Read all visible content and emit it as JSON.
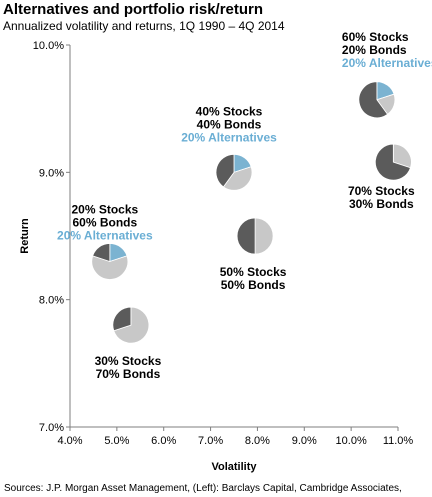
{
  "title": "Alternatives and portfolio risk/return",
  "subtitle": "Annualized volatility and returns, 1Q 1990 – 4Q 2014",
  "source": "Sources: J.P. Morgan Asset Management, (Left): Barclays Capital, Cambridge Associates,",
  "colors": {
    "stocks": "#5b5b5b",
    "bonds": "#c8c8c8",
    "alternatives": "#7bb3d1",
    "alt_text": "#6aaed4",
    "axis": "#7f7f7f"
  },
  "chart_data": {
    "type": "scatter",
    "xlabel": "Volatility",
    "ylabel": "Return",
    "xlim": [
      4.0,
      11.0
    ],
    "ylim": [
      7.0,
      10.0
    ],
    "xticks": [
      "4.0%",
      "5.0%",
      "6.0%",
      "7.0%",
      "8.0%",
      "9.0%",
      "10.0%",
      "11.0%"
    ],
    "yticks": [
      "7.0%",
      "8.0%",
      "9.0%",
      "10.0%"
    ],
    "grid": false,
    "points": [
      {
        "x": 4.85,
        "y": 8.3,
        "label": [
          "20% Stocks",
          "60% Bonds",
          "20% Alternatives"
        ],
        "allocation": {
          "stocks": 20,
          "bonds": 60,
          "alternatives": 20
        }
      },
      {
        "x": 5.3,
        "y": 7.8,
        "label": [
          "30% Stocks",
          "70% Bonds"
        ],
        "allocation": {
          "stocks": 30,
          "bonds": 70,
          "alternatives": 0
        }
      },
      {
        "x": 7.5,
        "y": 9.0,
        "label": [
          "40% Stocks",
          "40% Bonds",
          "20% Alternatives"
        ],
        "allocation": {
          "stocks": 40,
          "bonds": 40,
          "alternatives": 20
        }
      },
      {
        "x": 7.95,
        "y": 8.5,
        "label": [
          "50% Stocks",
          "50% Bonds"
        ],
        "allocation": {
          "stocks": 50,
          "bonds": 50,
          "alternatives": 0
        }
      },
      {
        "x": 10.55,
        "y": 9.57,
        "label": [
          "60% Stocks",
          "20% Bonds",
          "20% Alternatives"
        ],
        "allocation": {
          "stocks": 60,
          "bonds": 20,
          "alternatives": 20
        }
      },
      {
        "x": 10.9,
        "y": 9.08,
        "label": [
          "70% Stocks",
          "30% Bonds"
        ],
        "allocation": {
          "stocks": 70,
          "bonds": 30,
          "alternatives": 0
        }
      }
    ]
  }
}
